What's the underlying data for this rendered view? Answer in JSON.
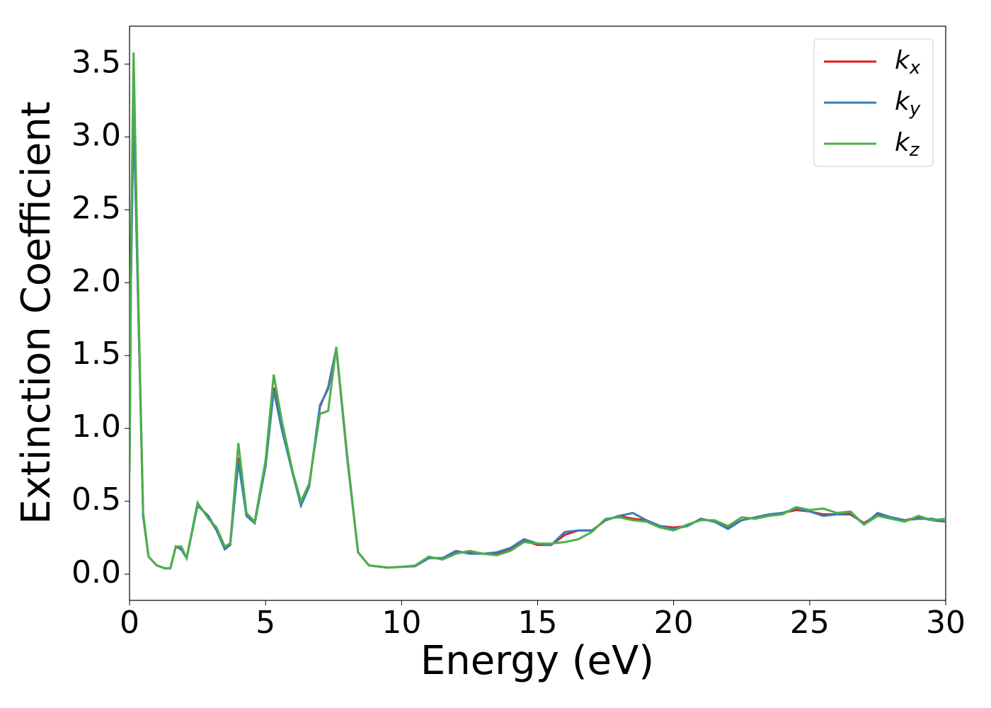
{
  "chart_data": {
    "type": "line",
    "x_label": "Energy (eV)",
    "y_label": "Extinction Coefficient",
    "x": [
      0,
      0.05,
      0.15,
      0.3,
      0.5,
      0.7,
      1.0,
      1.3,
      1.5,
      1.7,
      1.9,
      2.1,
      2.5,
      2.9,
      3.2,
      3.5,
      3.7,
      4.0,
      4.3,
      4.6,
      5.0,
      5.3,
      5.6,
      6.0,
      6.3,
      6.6,
      7.0,
      7.3,
      7.6,
      8.0,
      8.4,
      8.8,
      9.5,
      10.0,
      10.5,
      11.0,
      11.5,
      12.0,
      12.5,
      13.0,
      13.5,
      14.0,
      14.5,
      15.0,
      15.5,
      16.0,
      16.5,
      17.0,
      17.5,
      18.0,
      18.5,
      19.0,
      19.5,
      20.0,
      20.5,
      21.0,
      21.5,
      22.0,
      22.5,
      23.0,
      23.5,
      24.0,
      24.5,
      25.0,
      25.5,
      26.0,
      26.5,
      27.0,
      27.5,
      28.0,
      28.5,
      29.0,
      29.5,
      30.0
    ],
    "series": [
      {
        "name": "kx",
        "color": "#e41a1c",
        "values": [
          0.7,
          2.0,
          3.24,
          2.0,
          0.4,
          0.12,
          0.06,
          0.04,
          0.04,
          0.19,
          0.17,
          0.11,
          0.48,
          0.39,
          0.3,
          0.18,
          0.2,
          0.8,
          0.4,
          0.35,
          0.75,
          1.28,
          1.0,
          0.69,
          0.48,
          0.6,
          1.15,
          1.28,
          1.55,
          0.8,
          0.15,
          0.06,
          0.045,
          0.05,
          0.055,
          0.11,
          0.11,
          0.15,
          0.15,
          0.14,
          0.14,
          0.17,
          0.23,
          0.2,
          0.2,
          0.27,
          0.3,
          0.3,
          0.37,
          0.4,
          0.38,
          0.37,
          0.33,
          0.32,
          0.33,
          0.38,
          0.36,
          0.32,
          0.37,
          0.39,
          0.41,
          0.42,
          0.44,
          0.43,
          0.41,
          0.41,
          0.41,
          0.35,
          0.41,
          0.39,
          0.37,
          0.39,
          0.37,
          0.36
        ]
      },
      {
        "name": "ky",
        "color": "#377eb8",
        "values": [
          0.7,
          2.0,
          3.18,
          2.0,
          0.4,
          0.12,
          0.06,
          0.04,
          0.04,
          0.19,
          0.17,
          0.11,
          0.47,
          0.4,
          0.3,
          0.17,
          0.2,
          0.77,
          0.4,
          0.35,
          0.74,
          1.26,
          0.99,
          0.69,
          0.47,
          0.6,
          1.16,
          1.27,
          1.55,
          0.8,
          0.15,
          0.06,
          0.045,
          0.05,
          0.055,
          0.11,
          0.11,
          0.16,
          0.14,
          0.14,
          0.15,
          0.18,
          0.24,
          0.21,
          0.2,
          0.29,
          0.3,
          0.3,
          0.37,
          0.4,
          0.42,
          0.37,
          0.33,
          0.31,
          0.33,
          0.38,
          0.36,
          0.31,
          0.37,
          0.39,
          0.41,
          0.42,
          0.45,
          0.43,
          0.4,
          0.41,
          0.42,
          0.34,
          0.42,
          0.39,
          0.37,
          0.38,
          0.38,
          0.36
        ]
      },
      {
        "name": "kz",
        "color": "#4daf4a",
        "values": [
          0.7,
          2.2,
          3.58,
          2.1,
          0.42,
          0.12,
          0.06,
          0.04,
          0.04,
          0.19,
          0.19,
          0.11,
          0.49,
          0.38,
          0.32,
          0.19,
          0.21,
          0.9,
          0.42,
          0.36,
          0.78,
          1.37,
          1.05,
          0.7,
          0.5,
          0.62,
          1.1,
          1.12,
          1.56,
          0.82,
          0.15,
          0.06,
          0.045,
          0.05,
          0.06,
          0.12,
          0.1,
          0.14,
          0.16,
          0.14,
          0.13,
          0.16,
          0.22,
          0.21,
          0.21,
          0.22,
          0.24,
          0.29,
          0.38,
          0.39,
          0.37,
          0.36,
          0.32,
          0.3,
          0.34,
          0.37,
          0.37,
          0.33,
          0.39,
          0.38,
          0.4,
          0.41,
          0.46,
          0.44,
          0.45,
          0.42,
          0.43,
          0.34,
          0.4,
          0.38,
          0.36,
          0.4,
          0.37,
          0.38
        ]
      }
    ],
    "xlim": [
      0,
      30
    ],
    "xticks": [
      0,
      5,
      10,
      15,
      20,
      25,
      30
    ],
    "ylim": [
      -0.18,
      3.76
    ],
    "yticks": [
      {
        "value": 0,
        "label": "0.0"
      },
      0.5,
      {
        "value": 1,
        "label": "1.0"
      },
      1.5,
      {
        "value": 2,
        "label": "2.0"
      },
      2.5,
      {
        "value": 3,
        "label": "3.0"
      },
      3.5
    ],
    "legend": "upper right"
  }
}
